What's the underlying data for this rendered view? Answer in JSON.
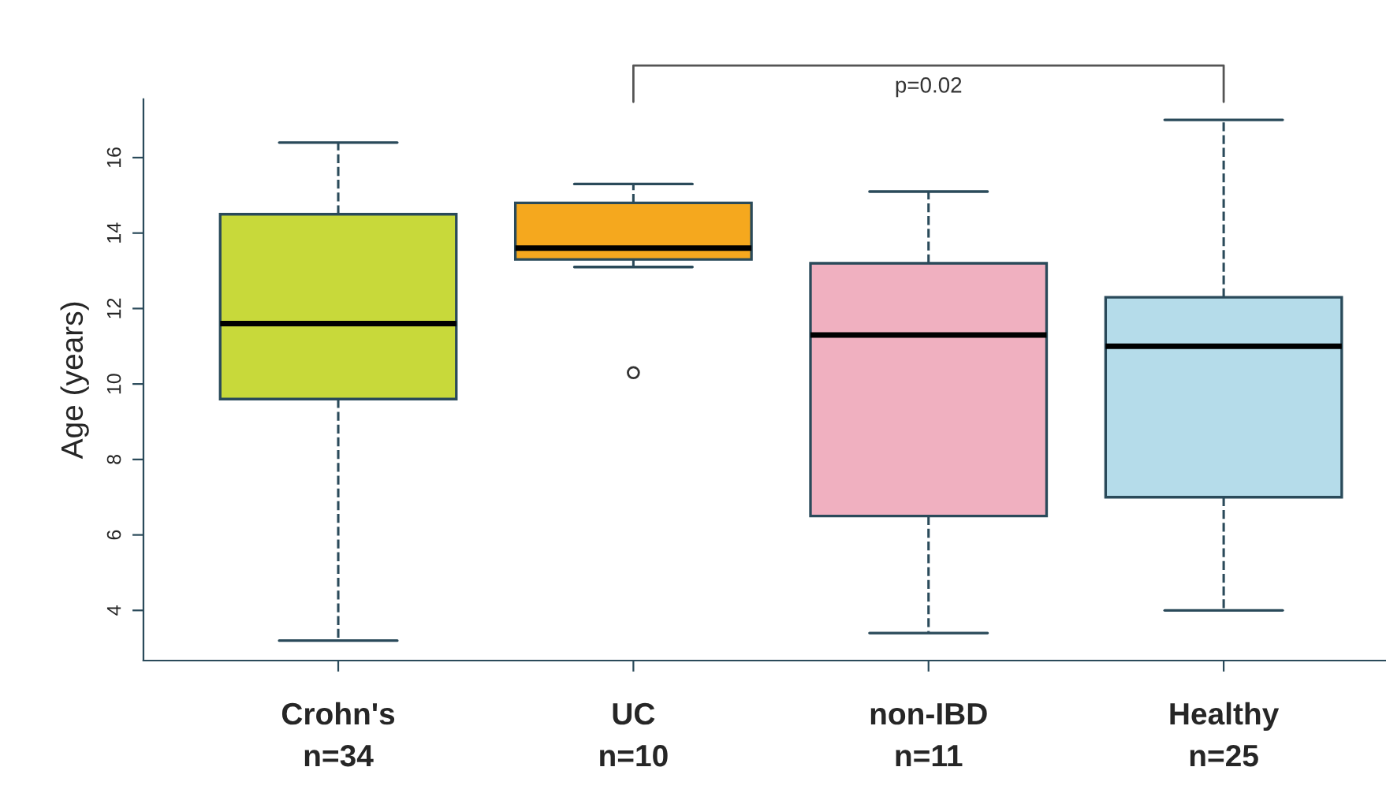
{
  "chart_data": {
    "type": "box",
    "categories": [
      "Crohn's\nn=34",
      "UC\nn=10",
      "non-IBD\nn=11",
      "Healthy\nn=25"
    ],
    "boxes": [
      {
        "low": 3.2,
        "q1": 9.6,
        "median": 11.6,
        "q3": 14.5,
        "high": 16.4
      },
      {
        "low": 13.1,
        "q1": 13.3,
        "median": 13.6,
        "q3": 14.8,
        "high": 15.3,
        "outliers": [
          10.3
        ]
      },
      {
        "low": 3.4,
        "q1": 6.5,
        "median": 11.3,
        "q3": 13.2,
        "high": 15.1
      },
      {
        "low": 4.0,
        "q1": 7.0,
        "median": 11.0,
        "q3": 12.3,
        "high": 17.0
      }
    ],
    "colors": [
      "#c8d93a",
      "#f5a81e",
      "#f0b0c0",
      "#b5dcea"
    ],
    "ylabel": "Age (years)",
    "ylim": [
      2.67,
      17.55
    ],
    "yticks": [
      4,
      6,
      8,
      10,
      12,
      14,
      16
    ],
    "annotations": [
      "p=0.02"
    ],
    "grid": false
  }
}
